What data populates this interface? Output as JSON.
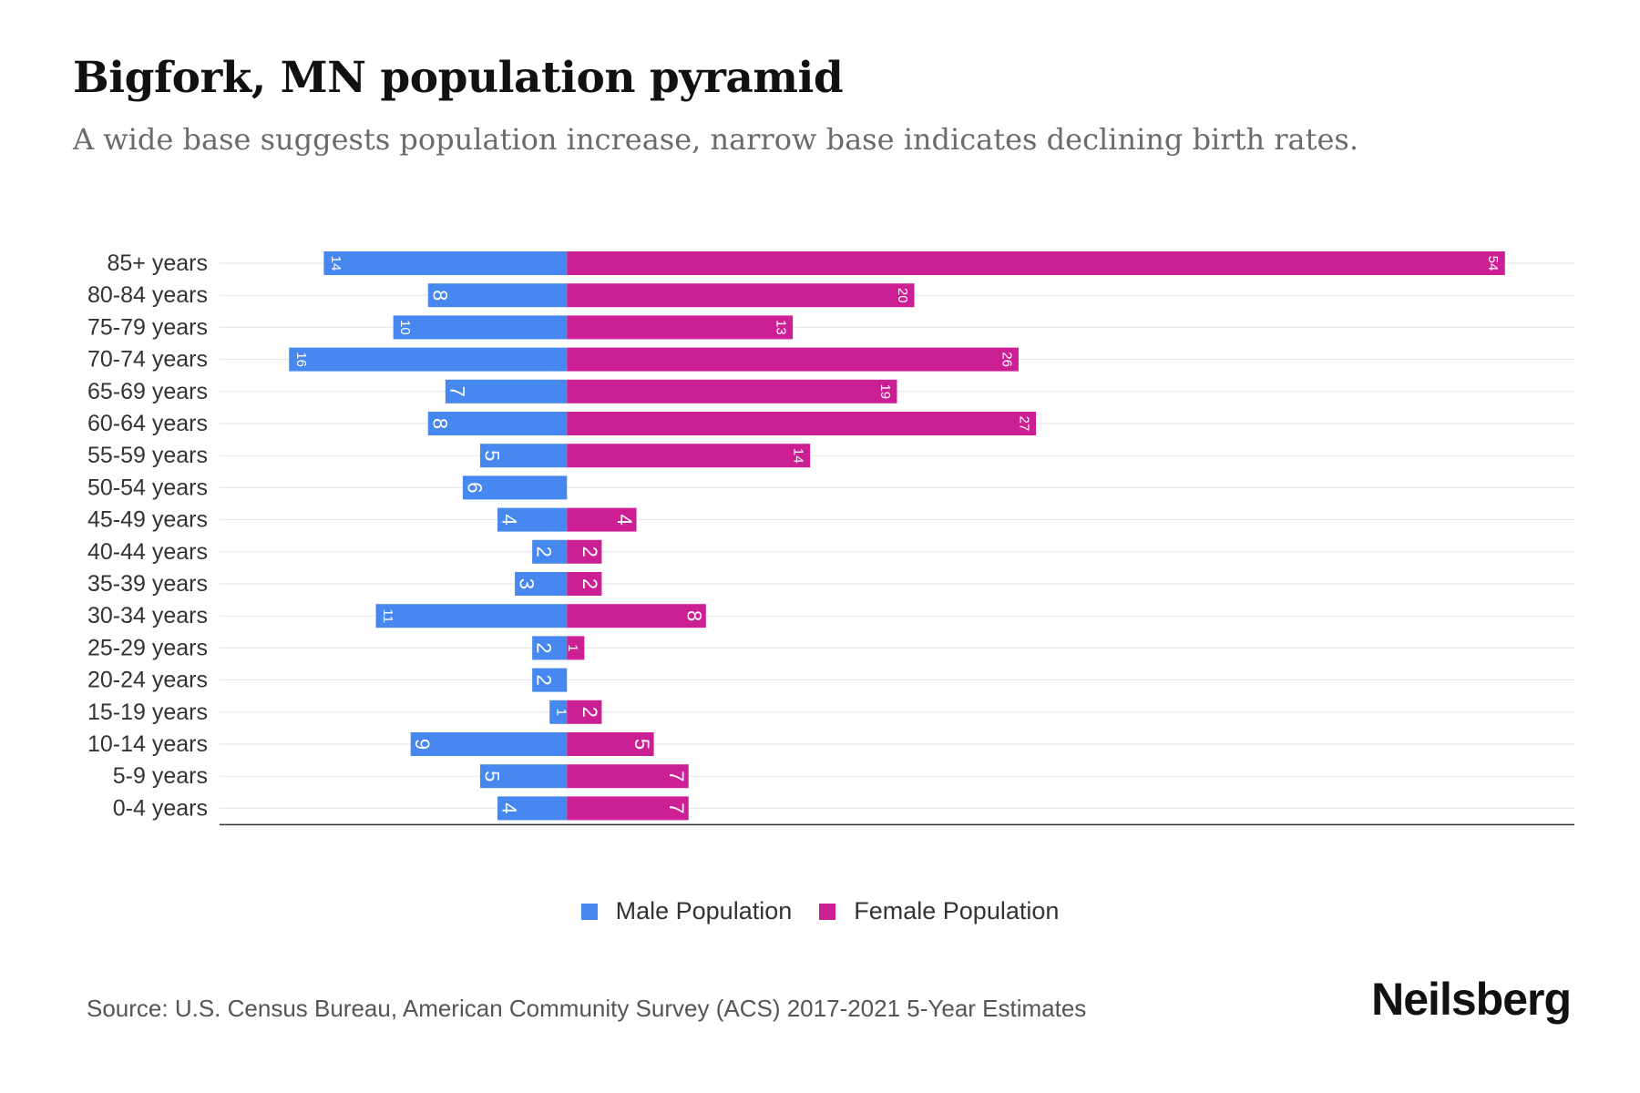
{
  "header": {
    "title": "Bigfork, MN population pyramid",
    "subtitle": "A wide base suggests population increase, narrow base indicates declining birth rates."
  },
  "legend": {
    "male_label": "Male Population",
    "female_label": "Female Population"
  },
  "footer": {
    "source": "Source: U.S. Census Bureau, American Community Survey (ACS) 2017-2021 5-Year Estimates",
    "brand": "Neilsberg"
  },
  "colors": {
    "male": "#4688ef",
    "female": "#cc1f94",
    "grid": "#e6e6e6",
    "axis": "#333333"
  },
  "chart_data": {
    "type": "bar",
    "orientation": "horizontal-pyramid",
    "categories": [
      "85+ years",
      "80-84 years",
      "75-79 years",
      "70-74 years",
      "65-69 years",
      "60-64 years",
      "55-59 years",
      "50-54 years",
      "45-49 years",
      "40-44 years",
      "35-39 years",
      "30-34 years",
      "25-29 years",
      "20-24 years",
      "15-19 years",
      "10-14 years",
      "5-9 years",
      "0-4 years"
    ],
    "series": [
      {
        "name": "Male Population",
        "values": [
          14,
          8,
          10,
          16,
          7,
          8,
          5,
          6,
          4,
          2,
          3,
          11,
          2,
          2,
          1,
          9,
          5,
          4
        ]
      },
      {
        "name": "Female Population",
        "values": [
          54,
          20,
          13,
          26,
          19,
          27,
          14,
          0,
          4,
          2,
          2,
          8,
          1,
          0,
          2,
          5,
          7,
          7
        ]
      }
    ],
    "xlim": [
      -20,
      58
    ],
    "data_labels": true,
    "grid": true,
    "legend_position": "bottom-center"
  }
}
